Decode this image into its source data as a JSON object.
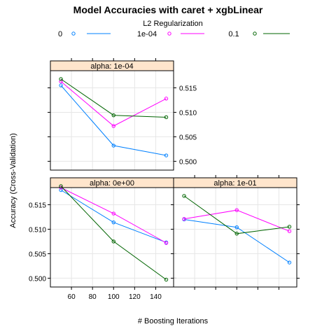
{
  "chart_data": {
    "type": "line",
    "title": "Model Accuracies with caret + xgbLinear",
    "xlabel": "# Boosting Iterations",
    "ylabel": "Accuracy (Cross-Validation)",
    "x": [
      50,
      100,
      150
    ],
    "xticks": [
      60,
      80,
      100,
      120,
      140
    ],
    "ylim": [
      0.4982,
      0.5185
    ],
    "yticks": [
      "0.500",
      "0.505",
      "0.510",
      "0.515"
    ],
    "xlim": [
      40,
      157
    ],
    "grid": true,
    "legend": {
      "title": "L2 Regularization",
      "placement": "top",
      "entries": [
        {
          "label": "0",
          "color": "#0080ff"
        },
        {
          "label": "1e-04",
          "color": "#ff00ff"
        },
        {
          "label": "0.1",
          "color": "#006400"
        }
      ]
    },
    "panels": [
      {
        "strip": "alpha: 1e-04",
        "series": [
          {
            "lambda": "0",
            "values": [
              0.5155,
              0.5032,
              0.5012
            ]
          },
          {
            "lambda": "1e-04",
            "values": [
              0.5163,
              0.5072,
              0.5128
            ]
          },
          {
            "lambda": "0.1",
            "values": [
              0.5168,
              0.5094,
              0.509
            ]
          }
        ]
      },
      {
        "strip": "alpha: 0e+00",
        "series": [
          {
            "lambda": "0",
            "values": [
              0.518,
              0.5114,
              0.5073
            ]
          },
          {
            "lambda": "1e-04",
            "values": [
              0.5185,
              0.5132,
              0.5072
            ]
          },
          {
            "lambda": "0.1",
            "values": [
              0.5188,
              0.5075,
              0.4997
            ]
          }
        ]
      },
      {
        "strip": "alpha: 1e-01",
        "series": [
          {
            "lambda": "0",
            "values": [
              0.512,
              0.5104,
              0.5032
            ]
          },
          {
            "lambda": "1e-04",
            "values": [
              0.5121,
              0.5139,
              0.5096
            ]
          },
          {
            "lambda": "0.1",
            "values": [
              0.5168,
              0.5091,
              0.5105
            ]
          }
        ]
      }
    ]
  }
}
